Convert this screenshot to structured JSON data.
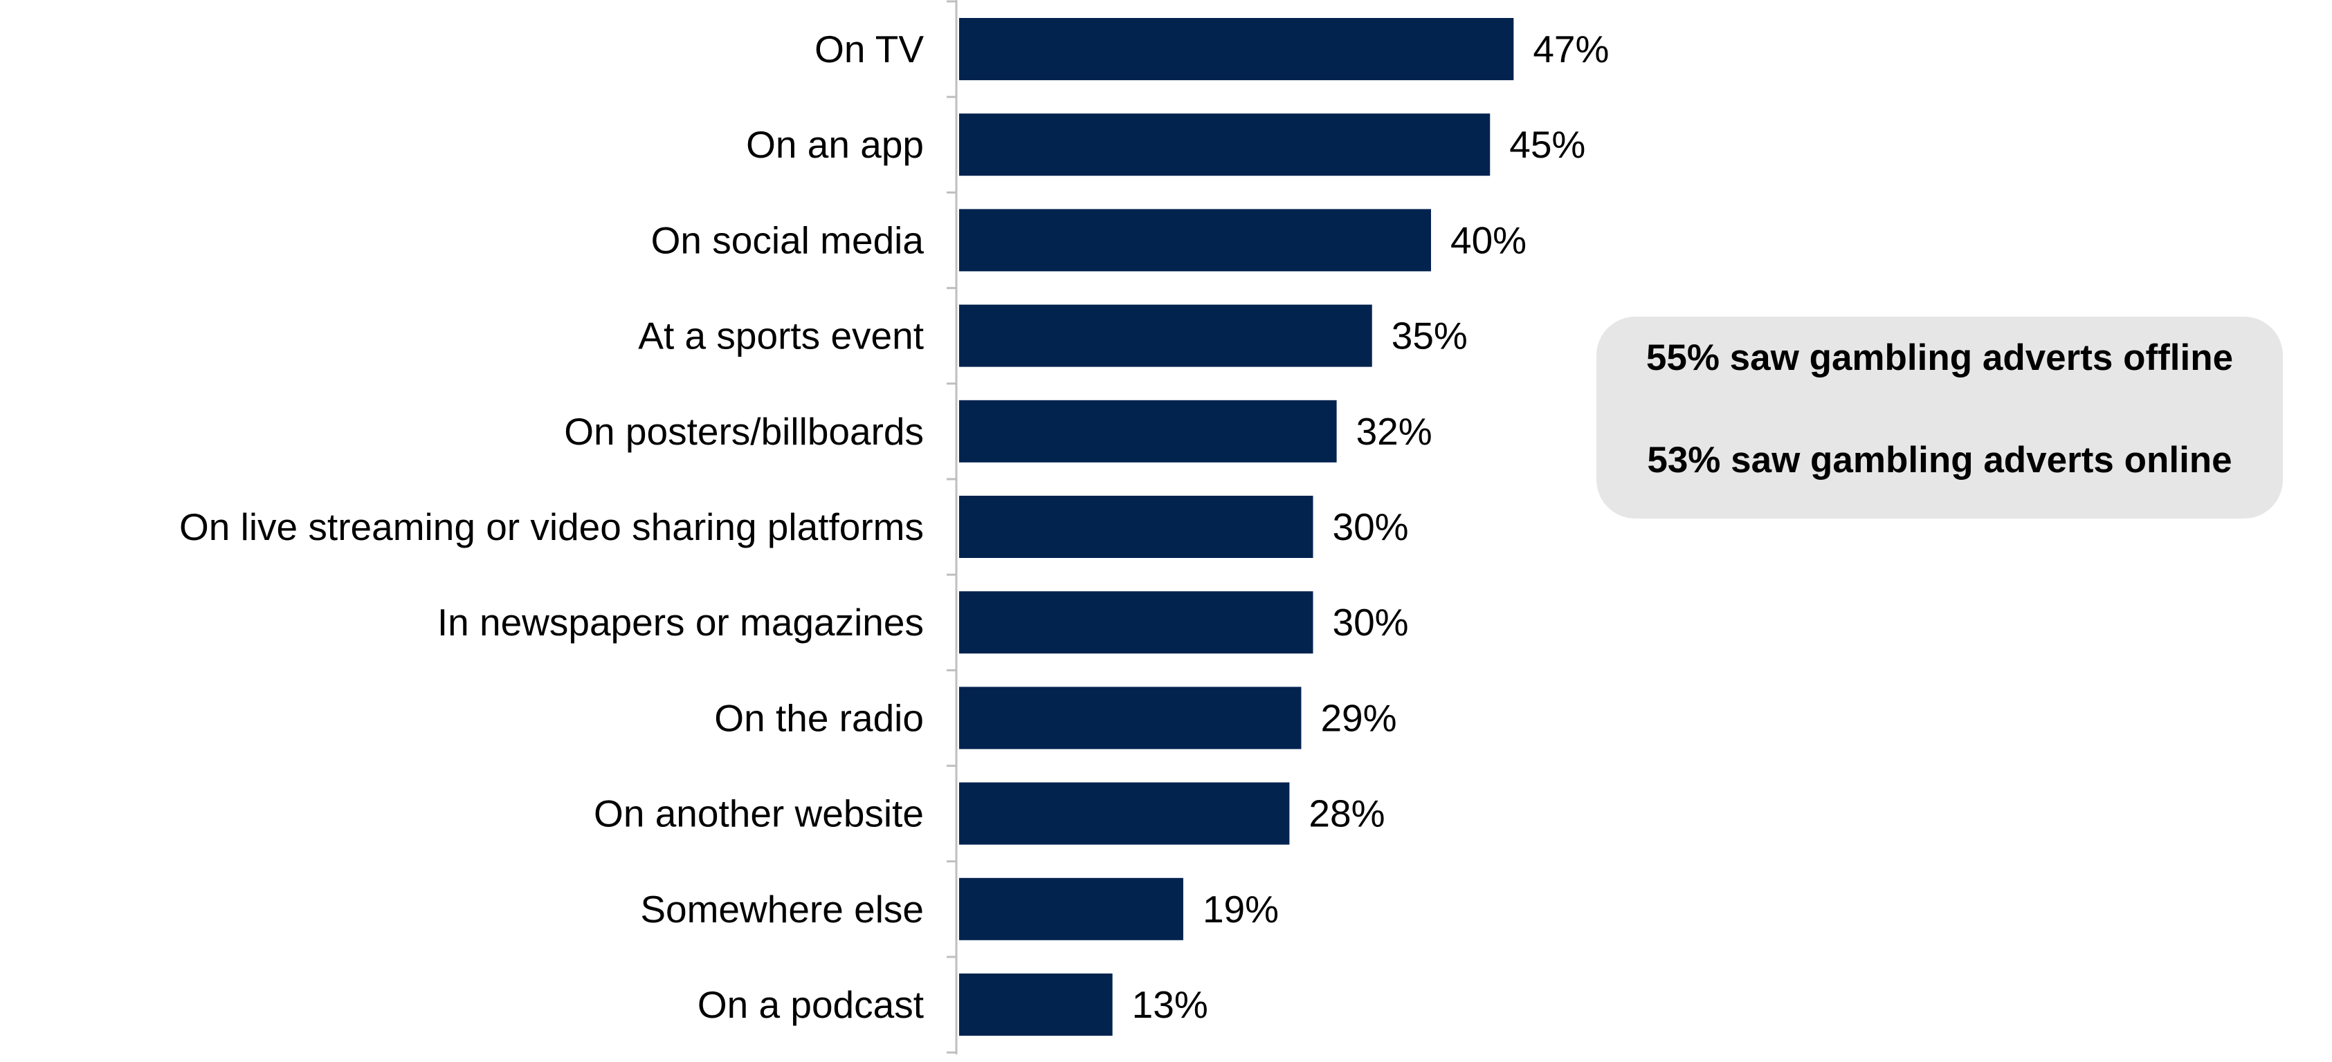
{
  "chart_data": {
    "type": "bar",
    "orientation": "horizontal",
    "categories": [
      "On TV",
      "On an app",
      "On social media",
      "At a sports event",
      "On posters/billboards",
      "On live streaming or video sharing platforms",
      "In newspapers or magazines",
      "On the radio",
      "On another website",
      "Somewhere else",
      "On a podcast"
    ],
    "values": [
      47,
      45,
      40,
      35,
      32,
      30,
      30,
      29,
      28,
      19,
      13
    ],
    "value_labels": [
      "47%",
      "45%",
      "40%",
      "35%",
      "32%",
      "30%",
      "30%",
      "29%",
      "28%",
      "19%",
      "13%"
    ],
    "bar_color": "#03234f",
    "axis_color": "#bfbfbf",
    "xlim": [
      0,
      100
    ],
    "grid": false,
    "legend": "none"
  },
  "summary": {
    "offline": "55% saw gambling adverts offline",
    "online": "53% saw gambling adverts online"
  }
}
